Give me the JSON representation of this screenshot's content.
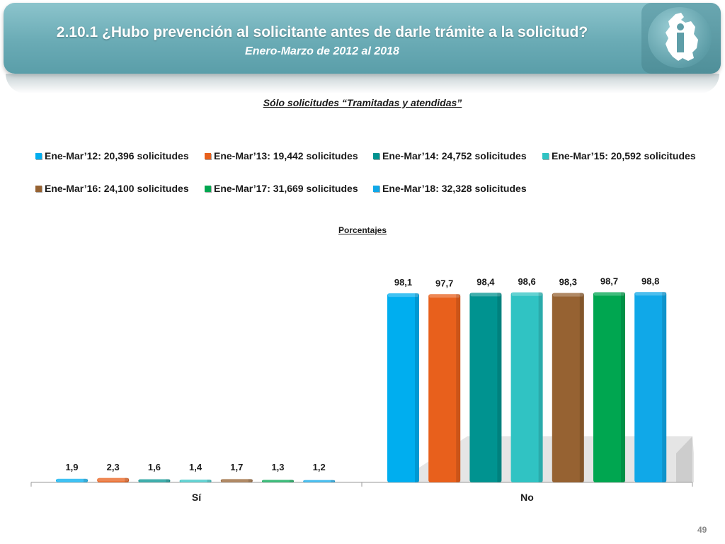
{
  "header": {
    "title": "2.10.1 ¿Hubo prevención al solicitante antes de darle trámite a la solicitud?",
    "subtitle": "Enero-Marzo de 2012 al 2018"
  },
  "section_title": "Sólo solicitudes “Tramitadas y atendidas”",
  "page_number": "49",
  "chart_data": {
    "type": "bar",
    "title": "Porcentajes",
    "categories": [
      "Sí",
      "No"
    ],
    "ylim": [
      0,
      100
    ],
    "grid": false,
    "legend_position": "top",
    "series": [
      {
        "name": "Ene-Mar’12: 20,396 solicitudes",
        "color": "#00aeef",
        "values": [
          1.9,
          98.1
        ],
        "labels": [
          "1,9",
          "98,1"
        ]
      },
      {
        "name": "Ene-Mar’13: 19,442 solicitudes",
        "color": "#e8601c",
        "values": [
          2.3,
          97.7
        ],
        "labels": [
          "2,3",
          "97,7"
        ]
      },
      {
        "name": "Ene-Mar’14: 24,752 solicitudes",
        "color": "#009390",
        "values": [
          1.6,
          98.4
        ],
        "labels": [
          "1,6",
          "98,4"
        ]
      },
      {
        "name": "Ene-Mar’15: 20,592 solicitudes",
        "color": "#30c3c3",
        "values": [
          1.4,
          98.6
        ],
        "labels": [
          "1,4",
          "98,6"
        ]
      },
      {
        "name": "Ene-Mar’16: 24,100 solicitudes",
        "color": "#966232",
        "values": [
          1.7,
          98.3
        ],
        "labels": [
          "1,7",
          "98,3"
        ]
      },
      {
        "name": "Ene-Mar’17: 31,669 solicitudes",
        "color": "#00a650",
        "values": [
          1.3,
          98.7
        ],
        "labels": [
          "1,3",
          "98,7"
        ]
      },
      {
        "name": "Ene-Mar’18: 32,328 solicitudes",
        "color": "#10a8e8",
        "values": [
          1.2,
          98.8
        ],
        "labels": [
          "1,2",
          "98,8"
        ]
      }
    ]
  }
}
